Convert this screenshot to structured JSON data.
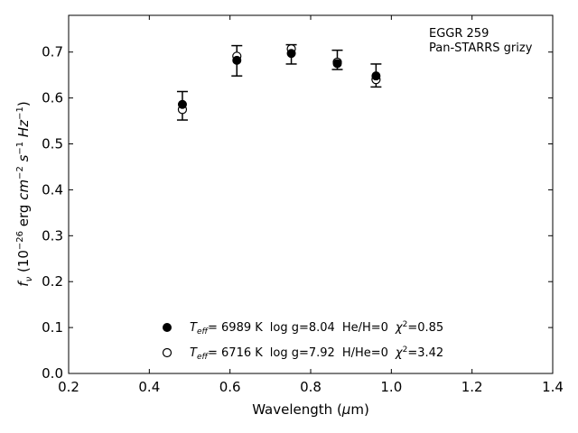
{
  "chart_data": {
    "type": "scatter",
    "xlabel": "Wavelength (μm)",
    "ylabel": "f_ν (10^-26 erg cm^-2 s^-1 Hz^-1)",
    "xlim": [
      0.2,
      1.4
    ],
    "ylim": [
      0.0,
      0.78
    ],
    "x_ticks": [
      "0.2",
      "0.4",
      "0.6",
      "0.8",
      "1.0",
      "1.2",
      "1.4"
    ],
    "y_ticks": [
      "0.0",
      "0.1",
      "0.2",
      "0.3",
      "0.4",
      "0.5",
      "0.6",
      "0.7"
    ],
    "grid": false,
    "annotations": [
      "EGGR 259",
      "Pan-STARRS grizy"
    ],
    "observed": {
      "x": [
        0.482,
        0.617,
        0.752,
        0.866,
        0.962
      ],
      "y": [
        0.583,
        0.681,
        0.695,
        0.683,
        0.649
      ],
      "err": [
        0.031,
        0.033,
        0.021,
        0.021,
        0.025
      ]
    },
    "series": [
      {
        "legend": {
          "param": "eff",
          "teff": "=  6989 K",
          "logg": "log g=8.04",
          "comp": "He/H=0",
          "chi": "=0.85"
        },
        "marker": "filled-circle",
        "x": [
          0.482,
          0.617,
          0.752,
          0.866,
          0.962
        ],
        "y": [
          0.586,
          0.682,
          0.697,
          0.675,
          0.648
        ]
      },
      {
        "legend": {
          "param": "eff",
          "teff": "=  6716 K",
          "logg": "log g=7.92",
          "comp": "H/He=0",
          "chi": "=3.42"
        },
        "marker": "open-circle",
        "x": [
          0.482,
          0.617,
          0.752,
          0.866,
          0.962
        ],
        "y": [
          0.575,
          0.691,
          0.707,
          0.678,
          0.64
        ]
      }
    ]
  }
}
